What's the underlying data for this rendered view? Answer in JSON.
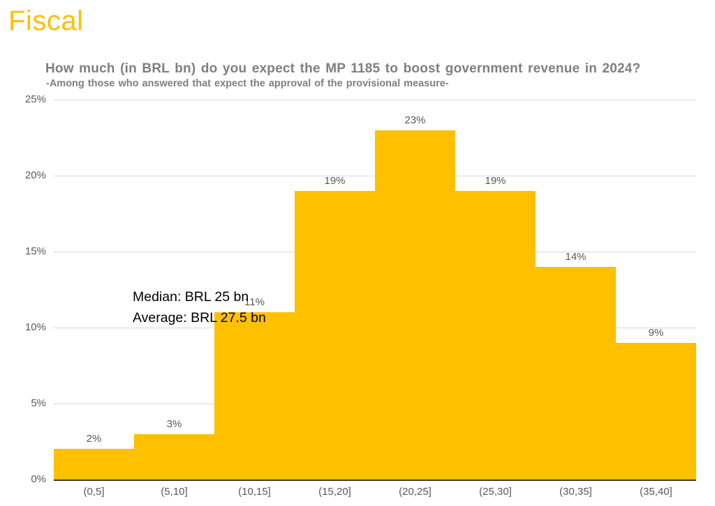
{
  "page": {
    "title": "Fiscal"
  },
  "colors": {
    "accent_gold": "#FFC000",
    "title_gray": "#7F7F7F",
    "axis_gray": "#595959",
    "gridline_gray": "#D9D9D9",
    "axis_line": "#3b3b3b",
    "annotation_black": "#000000"
  },
  "chart_data": {
    "type": "bar",
    "title": "How much (in BRL bn) do you expect the MP 1185 to boost government revenue in 2024?",
    "subtitle": "-Among those who answered that expect the approval of the provisional measure-",
    "categories": [
      "(0,5]",
      "(5,10]",
      "(10,15]",
      "(15,20]",
      "(20,25]",
      "(25,30]",
      "(30,35]",
      "(35,40]"
    ],
    "values": [
      2,
      3,
      11,
      19,
      23,
      19,
      14,
      9
    ],
    "value_labels": [
      "2%",
      "3%",
      "11%",
      "19%",
      "23%",
      "19%",
      "14%",
      "9%"
    ],
    "xlabel": "",
    "ylabel": "",
    "ylim": [
      0,
      25
    ],
    "ytick_step": 5,
    "ytick_labels": [
      "0%",
      "5%",
      "10%",
      "15%",
      "20%",
      "25%"
    ],
    "grid": true,
    "legend": "none",
    "bar_color": "#FFC000",
    "bar_gap": 0,
    "annotations": [
      "Median: BRL 25 bn",
      "Average: BRL 27.5 bn"
    ]
  }
}
